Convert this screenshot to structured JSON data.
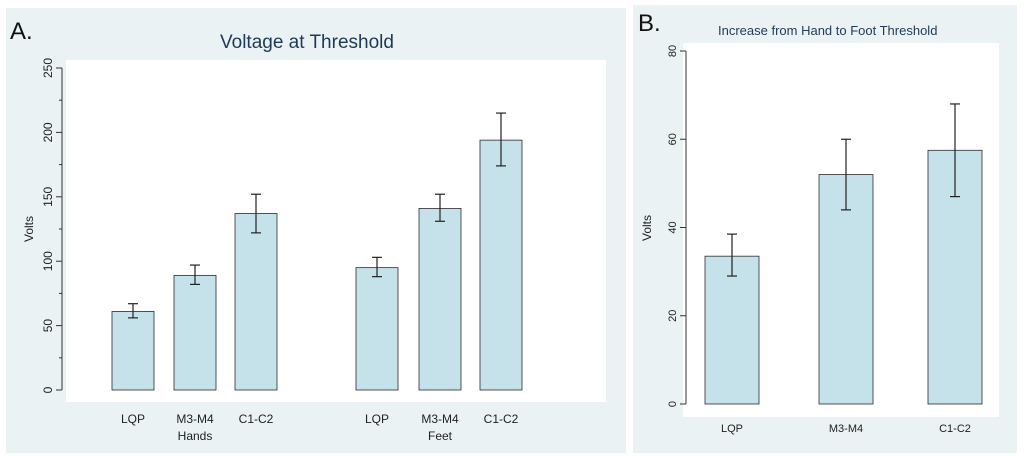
{
  "panels": {
    "a": {
      "label": "A."
    },
    "b": {
      "label": "B."
    }
  },
  "chart_data": [
    {
      "type": "bar",
      "title": "Voltage at Threshold",
      "xlabel": "",
      "ylabel": "Volts",
      "ylim": [
        0,
        250
      ],
      "yticks": [
        0,
        50,
        100,
        150,
        200,
        250
      ],
      "grid": false,
      "groups": [
        {
          "name": "Hands",
          "categories": [
            "LQP",
            "M3-M4",
            "C1-C2"
          ],
          "values": [
            61,
            89,
            137
          ],
          "err_low": [
            56,
            82,
            122
          ],
          "err_high": [
            67,
            97,
            152
          ]
        },
        {
          "name": "Feet",
          "categories": [
            "LQP",
            "M3-M4",
            "C1-C2"
          ],
          "values": [
            95,
            141,
            194
          ],
          "err_low": [
            88,
            131,
            174
          ],
          "err_high": [
            103,
            152,
            215
          ]
        }
      ],
      "colors": {
        "bar_fill": "#c5e1ea",
        "bar_stroke": "#2b2b2b"
      }
    },
    {
      "type": "bar",
      "title": "Increase from Hand to Foot Threshold",
      "xlabel": "",
      "ylabel": "Volts",
      "ylim": [
        0,
        80
      ],
      "yticks": [
        0,
        20,
        40,
        60,
        80
      ],
      "grid": false,
      "categories": [
        "LQP",
        "M3-M4",
        "C1-C2"
      ],
      "values": [
        33.5,
        52,
        57.5
      ],
      "err_low": [
        29,
        44,
        47
      ],
      "err_high": [
        38.5,
        60,
        68
      ],
      "colors": {
        "bar_fill": "#c5e1ea",
        "bar_stroke": "#2b2b2b"
      }
    }
  ]
}
